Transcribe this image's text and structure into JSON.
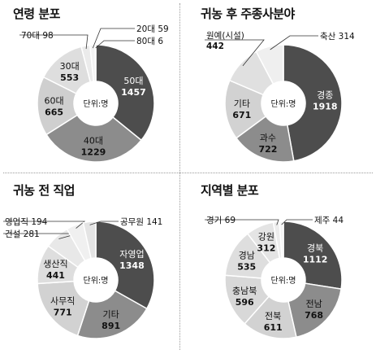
{
  "chart_data": [
    {
      "type": "pie",
      "title": "연령 분포",
      "center_label": "단위:명",
      "slices": [
        {
          "label": "50대",
          "value": 1457,
          "color": "#4d4d4d"
        },
        {
          "label": "40대",
          "value": 1229,
          "color": "#8c8c8c"
        },
        {
          "label": "60대",
          "value": 665,
          "color": "#cfcfcf"
        },
        {
          "label": "30대",
          "value": 553,
          "color": "#dedede"
        },
        {
          "label": "70대",
          "value": 98,
          "color": "#ebebeb"
        },
        {
          "label": "20대",
          "value": 59,
          "color": "#f3f3f3"
        },
        {
          "label": "80대",
          "value": 6,
          "color": "#bdbdbd"
        }
      ]
    },
    {
      "type": "pie",
      "title": "귀농 후 주종사분야",
      "center_label": "단위:명",
      "slices": [
        {
          "label": "경종",
          "value": 1918,
          "color": "#4d4d4d"
        },
        {
          "label": "과수",
          "value": 722,
          "color": "#8c8c8c"
        },
        {
          "label": "기타",
          "value": 671,
          "color": "#d2d2d2"
        },
        {
          "label": "원예(시설)",
          "value": 442,
          "color": "#e0e0e0"
        },
        {
          "label": "축산",
          "value": 314,
          "color": "#efefef"
        }
      ]
    },
    {
      "type": "pie",
      "title": "귀농 전 직업",
      "center_label": "단위:명",
      "slices": [
        {
          "label": "자영업",
          "value": 1348,
          "color": "#4d4d4d"
        },
        {
          "label": "기타",
          "value": 891,
          "color": "#8c8c8c"
        },
        {
          "label": "사무직",
          "value": 771,
          "color": "#d2d2d2"
        },
        {
          "label": "생산직",
          "value": 441,
          "color": "#dedede"
        },
        {
          "label": "건설",
          "value": 281,
          "color": "#e8e8e8"
        },
        {
          "label": "영업직",
          "value": 194,
          "color": "#f0f0f0"
        },
        {
          "label": "공무원",
          "value": 141,
          "color": "#e4e4e4"
        }
      ]
    },
    {
      "type": "pie",
      "title": "지역별 분포",
      "center_label": "단위:명",
      "slices": [
        {
          "label": "경북",
          "value": 1112,
          "color": "#4d4d4d"
        },
        {
          "label": "전남",
          "value": 768,
          "color": "#8c8c8c"
        },
        {
          "label": "전북",
          "value": 611,
          "color": "#d2d2d2"
        },
        {
          "label": "충남북",
          "value": 596,
          "color": "#d8d8d8"
        },
        {
          "label": "경남",
          "value": 535,
          "color": "#dedede"
        },
        {
          "label": "강원",
          "value": 312,
          "color": "#e4e4e4"
        },
        {
          "label": "경기",
          "value": 69,
          "color": "#ededed"
        },
        {
          "label": "제주",
          "value": 44,
          "color": "#f3f3f3"
        }
      ]
    }
  ]
}
